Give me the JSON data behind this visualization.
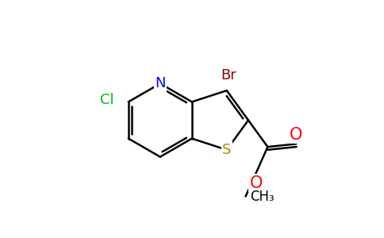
{
  "background_color": "#ffffff",
  "bond_color": "#000000",
  "atom_colors": {
    "Br": "#8b0000",
    "Cl": "#00bb00",
    "N": "#0000ff",
    "O": "#ff0000",
    "S": "#b8860b",
    "C": "#000000"
  },
  "bond_lw": 1.8,
  "font_size": 13,
  "figsize": [
    4.84,
    3.0
  ],
  "dpi": 100,
  "xlim": [
    -2.8,
    4.8
  ],
  "ylim": [
    -2.5,
    2.5
  ]
}
